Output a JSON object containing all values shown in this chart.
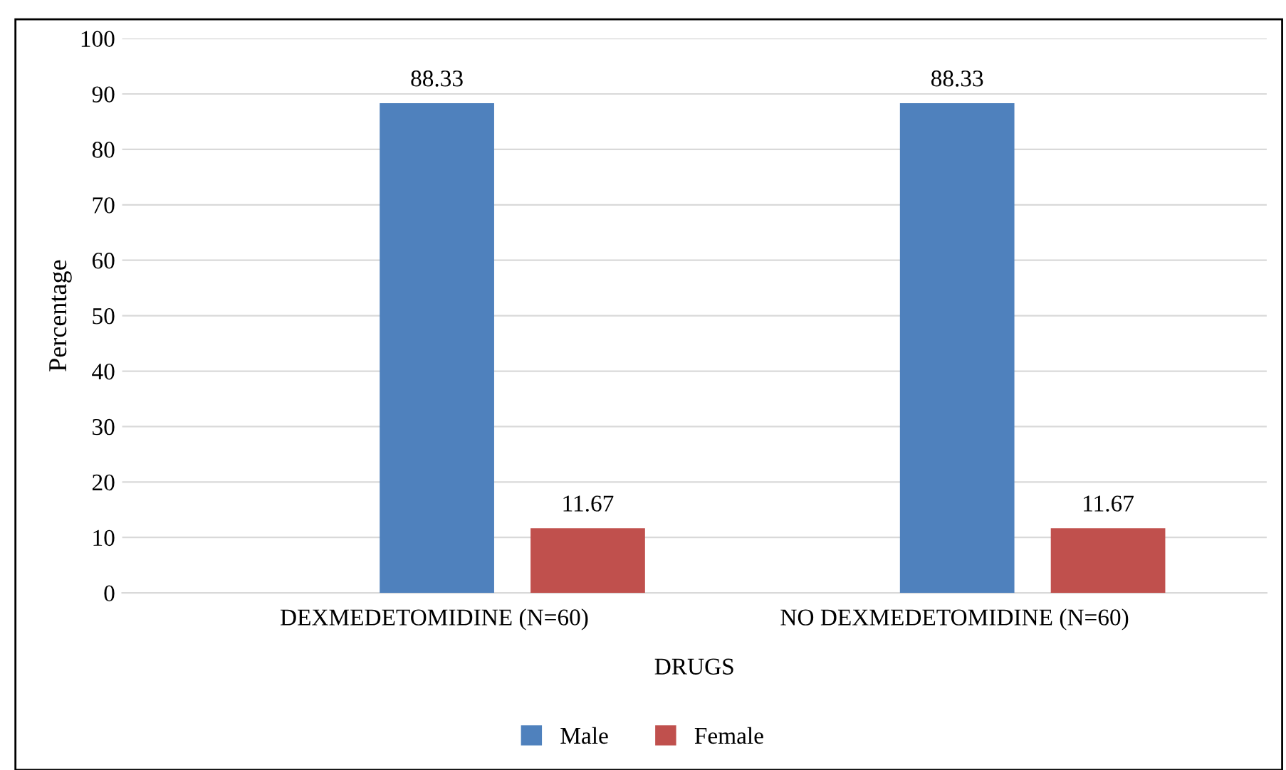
{
  "chart_data": {
    "type": "bar",
    "xlabel": "DRUGS",
    "ylabel": "Percentage",
    "categories": [
      "DEXMEDETOMIDINE (N=60)",
      "NO DEXMEDETOMIDINE (N=60)"
    ],
    "series": [
      {
        "name": "Male",
        "color": "#4f81bd",
        "values": [
          88.33,
          88.33
        ]
      },
      {
        "name": "Female",
        "color": "#c0504d",
        "values": [
          11.67,
          11.67
        ]
      }
    ],
    "ylim": [
      0,
      100
    ],
    "yticks": [
      0,
      10,
      20,
      30,
      40,
      50,
      60,
      70,
      80,
      90,
      100
    ],
    "grid": "y",
    "legend": "bottom",
    "data_labels": true
  }
}
